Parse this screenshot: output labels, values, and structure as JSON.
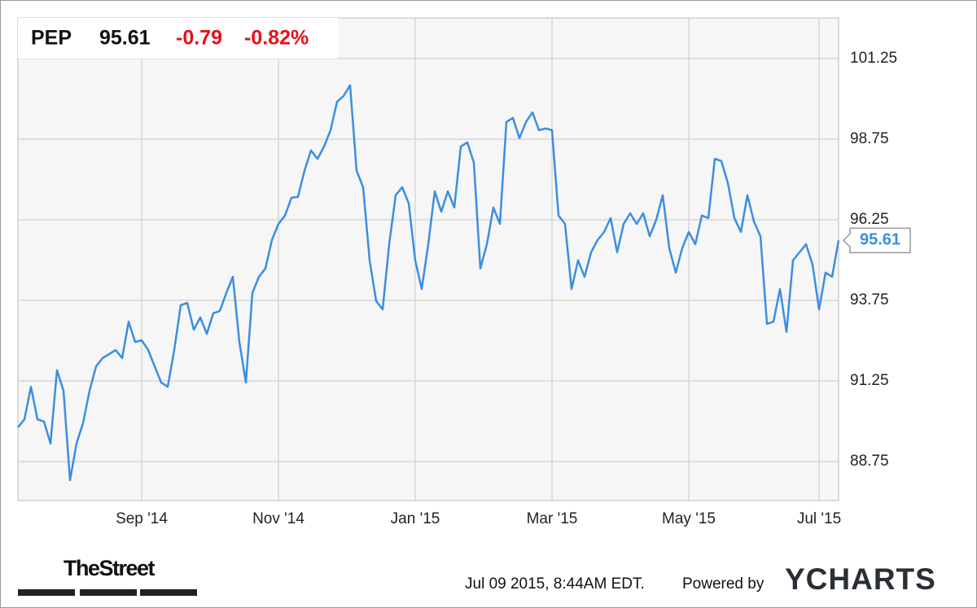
{
  "chart_data": {
    "type": "line",
    "ticker": "PEP",
    "price": "95.61",
    "change": "-0.79",
    "change_percent": "-0.82%",
    "categories": [
      null,
      null,
      null,
      null,
      null,
      null,
      null,
      null,
      null,
      null,
      null,
      null,
      null,
      null,
      null,
      null,
      null,
      null,
      null,
      "Sep '14",
      null,
      null,
      null,
      null,
      null,
      null,
      null,
      null,
      null,
      null,
      null,
      null,
      null,
      null,
      null,
      null,
      null,
      null,
      null,
      null,
      "Nov '14",
      null,
      null,
      null,
      null,
      null,
      null,
      null,
      null,
      null,
      null,
      null,
      null,
      null,
      null,
      null,
      null,
      null,
      null,
      null,
      null,
      "Jan '15",
      null,
      null,
      null,
      null,
      null,
      null,
      null,
      null,
      null,
      null,
      null,
      null,
      null,
      null,
      null,
      null,
      null,
      null,
      null,
      null,
      "Mar '15",
      null,
      null,
      null,
      null,
      null,
      null,
      null,
      null,
      null,
      null,
      null,
      null,
      null,
      null,
      null,
      null,
      null,
      null,
      null,
      null,
      "May '15",
      null,
      null,
      null,
      null,
      null,
      null,
      null,
      null,
      null,
      null,
      null,
      null,
      null,
      null,
      null,
      null,
      null,
      null,
      null,
      "Jul '15",
      null,
      null,
      null
    ],
    "series": [
      {
        "name": "PEP",
        "color": "#3b8ee0",
        "values": [
          89.81,
          90.06,
          91.07,
          90.06,
          89.99,
          89.31,
          91.58,
          90.95,
          88.17,
          89.31,
          89.94,
          90.95,
          91.7,
          91.96,
          92.08,
          92.21,
          91.96,
          93.09,
          92.46,
          92.51,
          92.21,
          91.7,
          91.2,
          91.07,
          92.21,
          93.6,
          93.67,
          92.84,
          93.22,
          92.71,
          93.35,
          93.42,
          93.98,
          94.48,
          92.46,
          91.2,
          93.98,
          94.48,
          94.74,
          95.62,
          96.12,
          96.38,
          96.93,
          96.96,
          97.77,
          98.4,
          98.14,
          98.52,
          99.03,
          99.91,
          100.09,
          100.42,
          97.77,
          97.26,
          94.99,
          93.73,
          93.47,
          95.49,
          97.01,
          97.26,
          96.76,
          94.99,
          94.1,
          95.49,
          97.13,
          96.5,
          97.13,
          96.63,
          98.52,
          98.65,
          98.02,
          94.74,
          95.49,
          96.63,
          96.12,
          99.28,
          99.41,
          98.78,
          99.28,
          99.58,
          99.03,
          99.08,
          99.03,
          96.38,
          96.12,
          94.1,
          94.99,
          94.48,
          95.24,
          95.62,
          95.87,
          96.3,
          95.24,
          96.12,
          96.45,
          96.12,
          96.45,
          95.74,
          96.25,
          97.01,
          95.37,
          94.61,
          95.37,
          95.87,
          95.49,
          96.38,
          96.3,
          98.14,
          98.07,
          97.39,
          96.3,
          95.87,
          97.01,
          96.2,
          95.74,
          93.02,
          93.09,
          94.1,
          92.77,
          94.99,
          95.24,
          95.49,
          94.86,
          93.47,
          94.61,
          94.48,
          95.61
        ]
      }
    ],
    "ylim": [
      87.54,
      102.51
    ],
    "yticks": [
      88.75,
      91.25,
      93.75,
      96.25,
      98.75,
      101.25
    ],
    "grid": true
  },
  "footer": {
    "source_logo": "TheStreet",
    "timestamp": "Jul 09 2015, 8:44AM EDT.",
    "powered_by": "Powered by",
    "brand": "YCHARTS"
  }
}
